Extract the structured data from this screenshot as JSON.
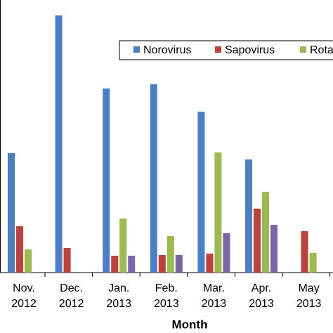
{
  "chart_data": {
    "type": "bar",
    "categories": [
      [
        "Nov.",
        "2012"
      ],
      [
        "Dec.",
        "2012"
      ],
      [
        "Jan.",
        "2013"
      ],
      [
        "Feb.",
        "2013"
      ],
      [
        "Mar.",
        "2013"
      ],
      [
        "Apr.",
        "2013"
      ],
      [
        "May",
        "2013"
      ]
    ],
    "series": [
      {
        "name": "Norovirus",
        "color": "#4a7ec6",
        "values": [
          170,
          366,
          262,
          268,
          229,
          161,
          null
        ]
      },
      {
        "name": "Sapovirus",
        "color": "#c0403c",
        "values": [
          66,
          35,
          24,
          25,
          27,
          91,
          59
        ]
      },
      {
        "name": "Rota",
        "color": "#9bbb4f",
        "values": [
          33,
          null,
          77,
          52,
          171,
          115,
          28
        ]
      },
      {
        "color": "#7f62a8",
        "values": [
          null,
          null,
          24,
          25,
          56,
          68,
          null
        ]
      }
    ],
    "ylim": [
      0,
      370
    ],
    "x_label": "Month"
  }
}
